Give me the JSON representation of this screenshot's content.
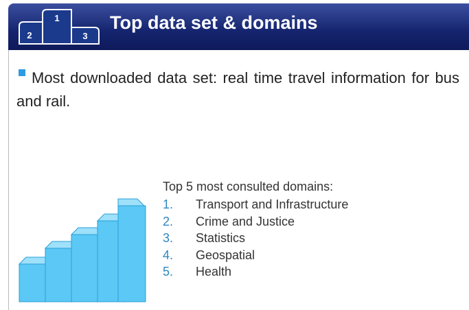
{
  "header": {
    "title": "Top data set & domains",
    "podium_labels": [
      "1",
      "2",
      "3"
    ]
  },
  "bullet": "Most downloaded data set: real time travel information for bus and rail.",
  "list": {
    "heading": "Top 5 most consulted domains:",
    "items": [
      {
        "number": "1.",
        "text": "Transport and Infrastructure"
      },
      {
        "number": "2.",
        "text": "Crime and Justice"
      },
      {
        "number": "3.",
        "text": "Statistics"
      },
      {
        "number": "4.",
        "text": "Geospatial"
      },
      {
        "number": "5.",
        "text": "Health"
      }
    ]
  }
}
